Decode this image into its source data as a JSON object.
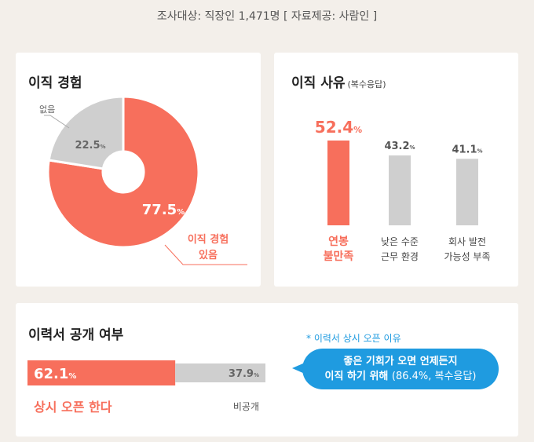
{
  "survey_note": "조사대상: 직장인 1,471명 [ 자료제공: 사람인 ]",
  "colors": {
    "accent": "#f76f5c",
    "gray": "#cfcfcf",
    "blue": "#1f9be0"
  },
  "chart_data": [
    {
      "type": "pie",
      "title": "이직 경험",
      "slices": [
        {
          "label": "이직 경험 있음",
          "value": 77.5,
          "color": "#f76f5c",
          "display": "77.5"
        },
        {
          "label": "없음",
          "value": 22.5,
          "color": "#cfcfcf",
          "display": "22.5"
        }
      ]
    },
    {
      "type": "bar",
      "title": "이직 사유",
      "subtitle": "(복수응답)",
      "categories": [
        "연봉 불만족",
        "낮은 수준 근무 환경",
        "회사 발전 가능성 부족"
      ],
      "category_lines": [
        [
          "연봉",
          "불만족"
        ],
        [
          "낮은 수준",
          "근무 환경"
        ],
        [
          "회사 발전",
          "가능성 부족"
        ]
      ],
      "values": [
        52.4,
        43.2,
        41.1
      ],
      "display": [
        "52.4",
        "43.2",
        "41.1"
      ],
      "ylim": [
        0,
        52.4
      ]
    },
    {
      "type": "bar",
      "orientation": "horizontal-stacked",
      "title": "이력서 공개 여부",
      "segments": [
        {
          "label": "상시 오픈 한다",
          "value": 62.1,
          "display": "62.1",
          "color": "#f76f5c"
        },
        {
          "label": "비공개",
          "value": 37.9,
          "display": "37.9",
          "color": "#cfcfcf"
        }
      ]
    }
  ],
  "unit": "%",
  "reason_caption": "* 이력서 상시 오픈 이유",
  "reason_bubble": {
    "line1": "좋은 기회가 오면 언제든지",
    "line2": "이직 하기 위해",
    "note": "(86.4%, 복수응답)"
  }
}
